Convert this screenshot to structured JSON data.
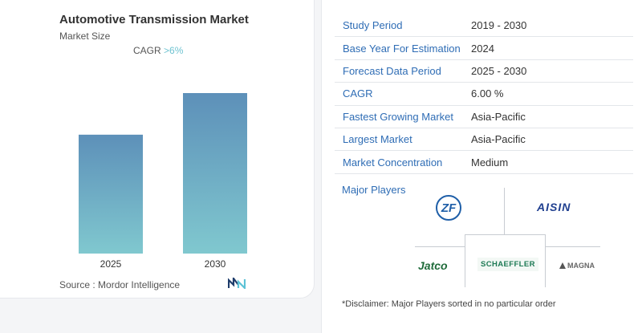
{
  "header": {
    "title": "Automotive Transmission Market",
    "subtitle": "Market Size",
    "cagr_label": "CAGR",
    "cagr_value": ">6%"
  },
  "chart_data": {
    "type": "bar",
    "categories": [
      "2025",
      "2030"
    ],
    "values": [
      1,
      1.35
    ],
    "title": "Automotive Transmission Market",
    "subtitle": "Market Size",
    "xlabel": "",
    "ylabel": "",
    "colors": {
      "top": "#5d90b9",
      "bottom": "#80c8cf"
    }
  },
  "source": "Source :  Mordor Intelligence",
  "info": [
    {
      "label": "Study Period",
      "value": "2019 - 2030"
    },
    {
      "label": "Base Year For Estimation",
      "value": "2024"
    },
    {
      "label": "Forecast Data Period",
      "value": "2025 - 2030"
    },
    {
      "label": "CAGR",
      "value": "6.00 %"
    },
    {
      "label": "Fastest Growing Market",
      "value": "Asia-Pacific"
    },
    {
      "label": "Largest Market",
      "value": "Asia-Pacific"
    },
    {
      "label": "Market Concentration",
      "value": "Medium"
    }
  ],
  "players": {
    "label": "Major Players",
    "logos": {
      "zf": "ZF",
      "aisin": "AISIN",
      "jatco": "Jatco",
      "schaeffler": "SCHAEFFLER",
      "magna": "MAGNA"
    }
  },
  "disclaimer": "*Disclaimer: Major Players sorted in no particular order"
}
